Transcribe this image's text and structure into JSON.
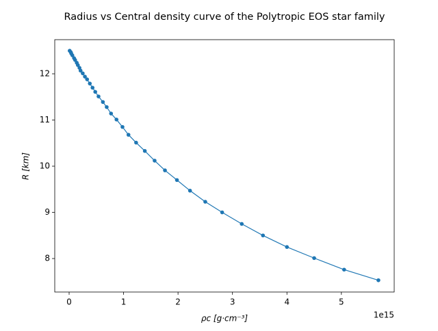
{
  "chart_data": {
    "type": "line",
    "title": "Radius vs Central density curve of the Polytropic EOS star family",
    "x_label": "ρc [g·cm⁻³]",
    "y_label": "R [km]",
    "x_offset_label": "1e15",
    "color": "#1f77b4",
    "x": [
      0.01,
      0.03,
      0.04,
      0.06,
      0.09,
      0.11,
      0.14,
      0.16,
      0.19,
      0.21,
      0.25,
      0.29,
      0.33,
      0.38,
      0.43,
      0.48,
      0.54,
      0.62,
      0.69,
      0.77,
      0.87,
      0.98,
      1.09,
      1.23,
      1.39,
      1.57,
      1.76,
      1.98,
      2.22,
      2.5,
      2.81,
      3.17,
      3.56,
      4.0,
      4.5,
      5.05,
      5.68
    ],
    "values": [
      12.5,
      12.47,
      12.44,
      12.4,
      12.34,
      12.3,
      12.24,
      12.19,
      12.13,
      12.07,
      12.01,
      11.94,
      11.88,
      11.79,
      11.7,
      11.61,
      11.51,
      11.39,
      11.28,
      11.14,
      11.01,
      10.85,
      10.68,
      10.51,
      10.33,
      10.12,
      9.91,
      9.7,
      9.47,
      9.23,
      9.0,
      8.75,
      8.5,
      8.25,
      8.01,
      7.76,
      7.53
    ],
    "xlim": [
      -0.264,
      5.97
    ],
    "ylim": [
      7.275,
      12.74
    ],
    "xticks": [
      0,
      1,
      2,
      3,
      4,
      5
    ],
    "yticks": [
      8,
      9,
      10,
      11,
      12
    ]
  }
}
